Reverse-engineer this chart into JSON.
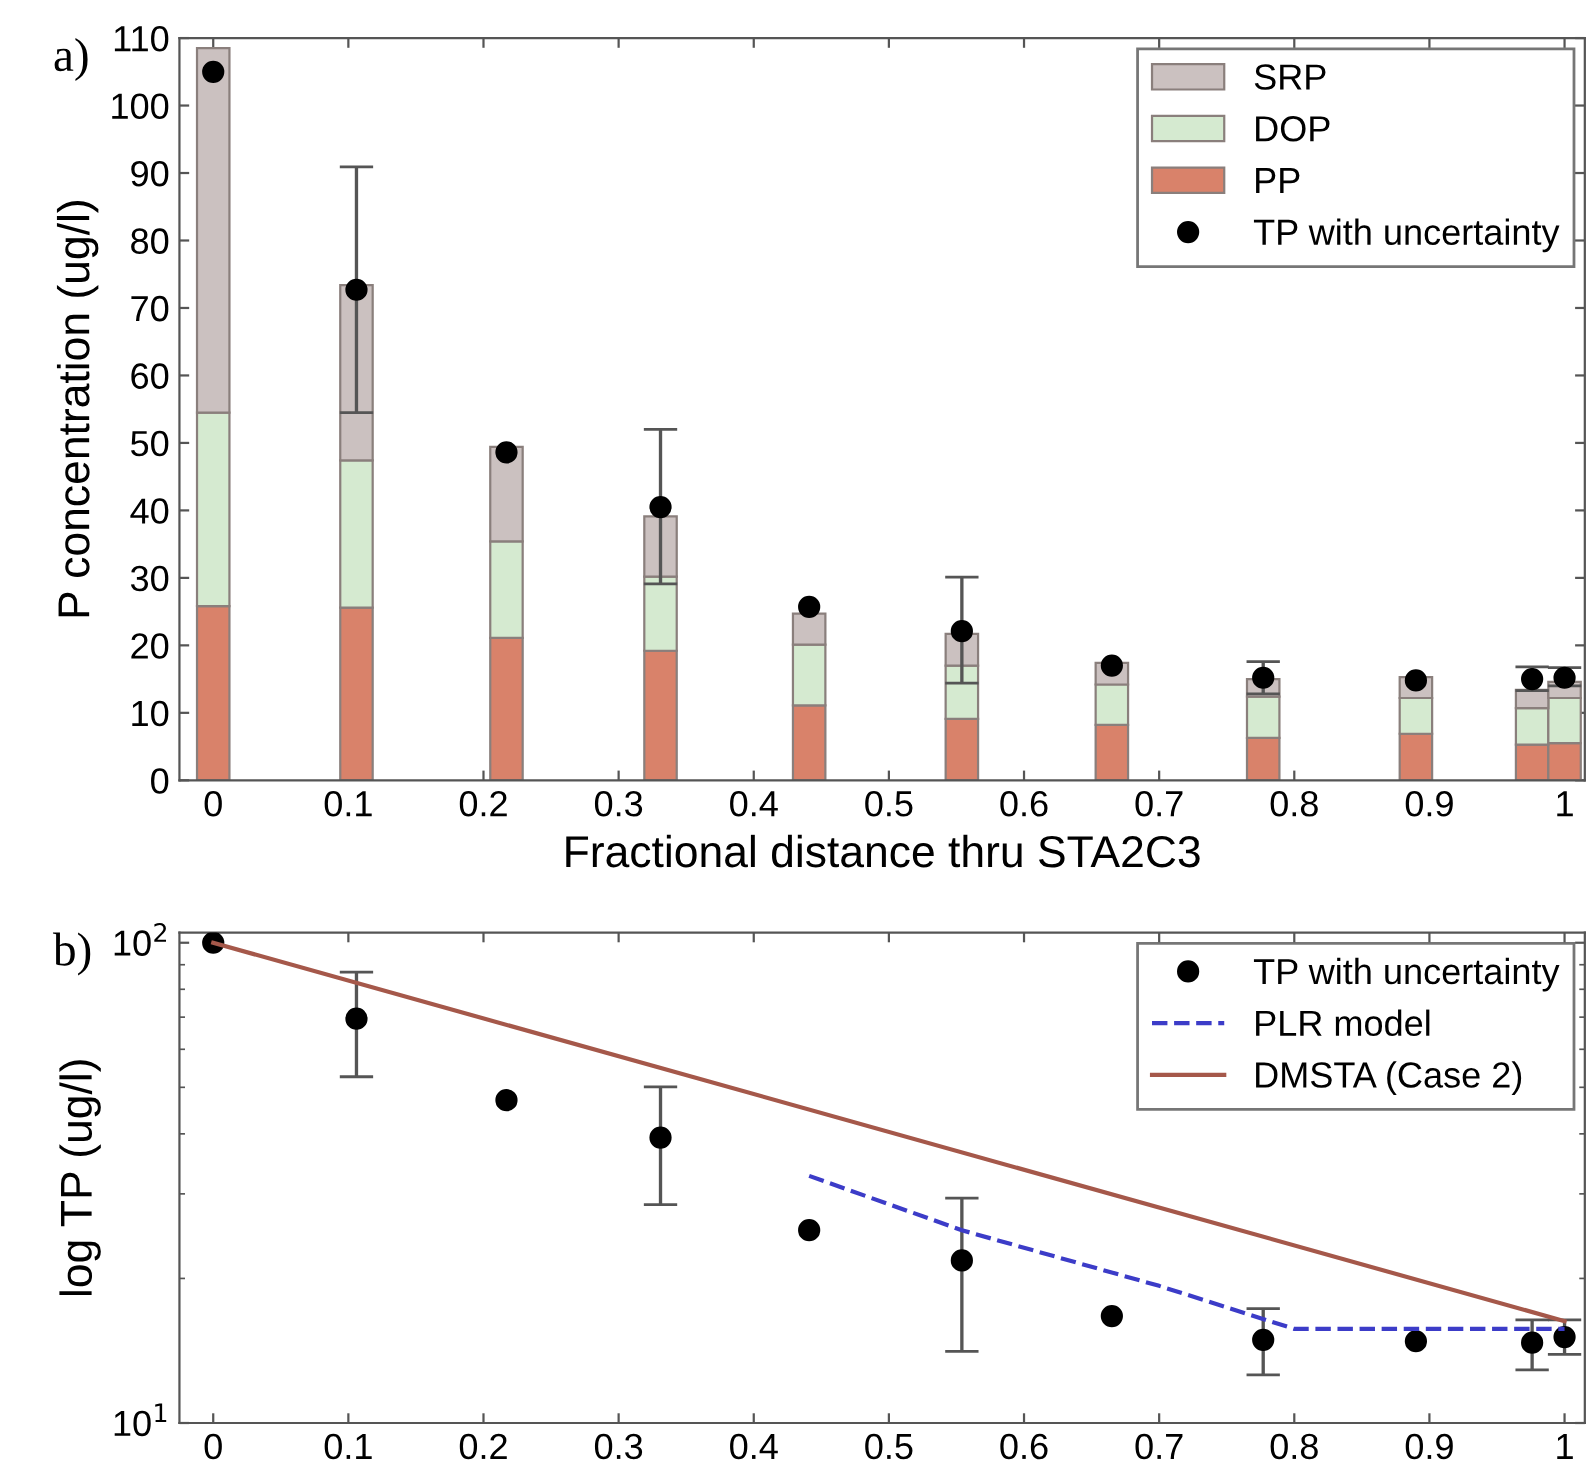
{
  "chart_data": [
    {
      "type": "bar",
      "stacked": true,
      "xlabel": "Fractional distance thru STA2C3",
      "ylabel": "P concentration (ug/l)",
      "annotations": [
        "a)"
      ],
      "x": [
        0,
        0.106,
        0.217,
        0.331,
        0.441,
        0.554,
        0.665,
        0.777,
        0.89,
        0.976,
        1.0
      ],
      "series": [
        {
          "name": "PP",
          "color": "#d9826a",
          "values": [
            25.8,
            25.6,
            21.1,
            19.2,
            11.1,
            9.1,
            8.2,
            6.3,
            6.9,
            5.3,
            5.5
          ]
        },
        {
          "name": "DOP",
          "color": "#d5ead0",
          "values": [
            28.7,
            21.8,
            14.3,
            11.0,
            9.0,
            7.9,
            6.0,
            6.1,
            5.3,
            5.4,
            6.7
          ]
        },
        {
          "name": "SRP",
          "color": "#cbc1c0",
          "values": [
            54.0,
            26.0,
            14.0,
            8.9,
            4.6,
            4.7,
            3.2,
            2.6,
            3.1,
            2.7,
            2.4
          ]
        },
        {
          "name": "TP with uncertainty",
          "type": "scatter",
          "color": "#000000",
          "marker": "circle",
          "values": [
            105,
            72.7,
            48.6,
            40.5,
            25.7,
            22.1,
            17.0,
            15.2,
            14.8,
            15.0,
            15.2
          ],
          "errors": [
            null,
            [
              54.5,
              90.9
            ],
            null,
            [
              29.1,
              52.0
            ],
            null,
            [
              14.4,
              30.1
            ],
            null,
            [
              12.8,
              17.6
            ],
            null,
            [
              13.3,
              16.8
            ],
            [
              14.0,
              16.7
            ]
          ]
        }
      ],
      "xlim": [
        -0.025,
        1.015
      ],
      "xticks": [
        0,
        0.1,
        0.2,
        0.3,
        0.4,
        0.5,
        0.6,
        0.7,
        0.8,
        0.9,
        1
      ],
      "ylim": [
        0,
        110
      ],
      "yticks": [
        0,
        10,
        20,
        30,
        40,
        50,
        60,
        70,
        80,
        90,
        100,
        110
      ],
      "grid": false,
      "legend": "top right"
    },
    {
      "type": "scatter",
      "log": "y",
      "ylabel": "log TP (ug/l)",
      "annotations": [
        "b)"
      ],
      "x": [
        0,
        0.106,
        0.217,
        0.331,
        0.441,
        0.554,
        0.665,
        0.777,
        0.89,
        0.976,
        1.0
      ],
      "series": [
        {
          "name": "TP with uncertainty",
          "color": "#000000",
          "marker": "circle",
          "values": [
            100,
            69.5,
            47.0,
            39.3,
            25.2,
            21.8,
            16.7,
            14.9,
            14.8,
            14.7,
            15.1
          ],
          "errors": [
            null,
            [
              52.6,
              86.9
            ],
            null,
            [
              28.5,
              50.1
            ],
            null,
            [
              14.1,
              29.4
            ],
            null,
            [
              12.6,
              17.3
            ],
            null,
            [
              12.9,
              16.4
            ],
            [
              13.9,
              16.4
            ]
          ]
        },
        {
          "name": "PLR model",
          "type": "line",
          "color": "#3c3cc8",
          "line_style": "dashed",
          "x": [
            0.441,
            0.554,
            0.7,
            0.8,
            1.0
          ],
          "values": [
            32.7,
            25.2,
            19.3,
            15.7,
            15.7
          ]
        },
        {
          "name": "DMSTA (Case 2)",
          "type": "line",
          "color": "#a5584a",
          "line_style": "solid",
          "x": [
            0,
            1.0
          ],
          "values": [
            100,
            16.3
          ]
        }
      ],
      "xlim": [
        -0.025,
        1.015
      ],
      "xticks": [
        0,
        0.1,
        0.2,
        0.3,
        0.4,
        0.5,
        0.6,
        0.7,
        0.8,
        0.9,
        1
      ],
      "ylim": [
        10,
        105
      ],
      "yticks": [
        {
          "value": 10,
          "label": "10$^{1}$"
        },
        {
          "value": 100,
          "label": "10$^{2}$"
        }
      ],
      "grid": false,
      "legend": "top right"
    }
  ]
}
